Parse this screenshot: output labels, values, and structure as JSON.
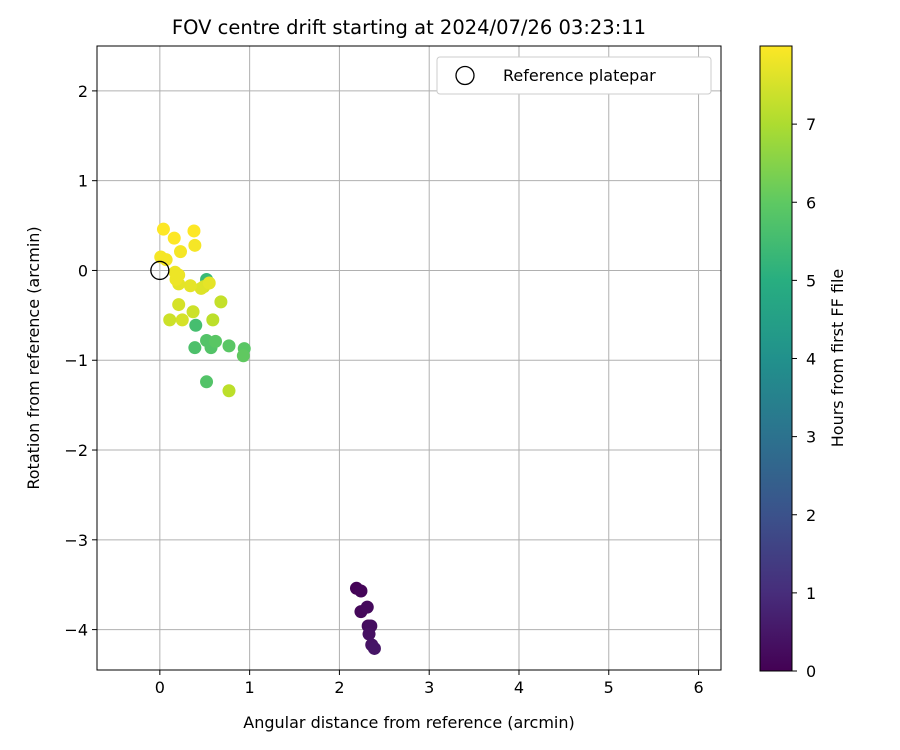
{
  "chart_data": {
    "type": "scatter",
    "title": "FOV centre drift starting at 2024/07/26 03:23:11",
    "xlabel": "Angular distance from reference (arcmin)",
    "ylabel": "Rotation from reference (arcmin)",
    "xlim": [
      -0.7,
      6.25
    ],
    "ylim": [
      -4.45,
      2.5
    ],
    "xticks": [
      0,
      1,
      2,
      3,
      4,
      5,
      6
    ],
    "yticks": [
      2,
      1,
      0,
      -1,
      -2,
      -3,
      -4
    ],
    "grid": true,
    "legend": {
      "placement": "top-right",
      "entries": [
        "Reference platepar"
      ]
    },
    "reference_point": {
      "x": 0.0,
      "y": 0.0,
      "label": "Reference platepar"
    },
    "colorbar": {
      "label": "Hours from first FF file",
      "colormap": "viridis",
      "range": [
        0,
        8.0
      ],
      "ticks": [
        0,
        1,
        2,
        3,
        4,
        5,
        6,
        7
      ]
    },
    "points": [
      {
        "x": 2.19,
        "y": -3.54,
        "hours": 0.05
      },
      {
        "x": 2.24,
        "y": -3.57,
        "hours": 0.1
      },
      {
        "x": 2.24,
        "y": -3.8,
        "hours": 0.15
      },
      {
        "x": 2.31,
        "y": -3.75,
        "hours": 0.2
      },
      {
        "x": 2.32,
        "y": -3.96,
        "hours": 0.25
      },
      {
        "x": 2.35,
        "y": -3.96,
        "hours": 0.3
      },
      {
        "x": 2.33,
        "y": -4.05,
        "hours": 0.35
      },
      {
        "x": 2.36,
        "y": -4.17,
        "hours": 0.4
      },
      {
        "x": 2.39,
        "y": -4.21,
        "hours": 0.45
      },
      {
        "x": 0.52,
        "y": -0.1,
        "hours": 5.4
      },
      {
        "x": 0.4,
        "y": -0.61,
        "hours": 5.6
      },
      {
        "x": 0.39,
        "y": -0.86,
        "hours": 5.7
      },
      {
        "x": 0.52,
        "y": -0.78,
        "hours": 5.8
      },
      {
        "x": 0.57,
        "y": -0.86,
        "hours": 5.8
      },
      {
        "x": 0.62,
        "y": -0.79,
        "hours": 5.9
      },
      {
        "x": 0.77,
        "y": -0.84,
        "hours": 5.9
      },
      {
        "x": 0.94,
        "y": -0.87,
        "hours": 5.9
      },
      {
        "x": 0.93,
        "y": -0.95,
        "hours": 6.0
      },
      {
        "x": 0.52,
        "y": -1.24,
        "hours": 5.8
      },
      {
        "x": 0.77,
        "y": -1.34,
        "hours": 7.2
      },
      {
        "x": 0.59,
        "y": -0.55,
        "hours": 7.2
      },
      {
        "x": 0.68,
        "y": -0.35,
        "hours": 7.3
      },
      {
        "x": 0.37,
        "y": -0.46,
        "hours": 7.4
      },
      {
        "x": 0.11,
        "y": -0.55,
        "hours": 7.4
      },
      {
        "x": 0.25,
        "y": -0.55,
        "hours": 7.5
      },
      {
        "x": 0.21,
        "y": -0.38,
        "hours": 7.5
      },
      {
        "x": 0.49,
        "y": -0.18,
        "hours": 7.5
      },
      {
        "x": 0.46,
        "y": -0.2,
        "hours": 7.6
      },
      {
        "x": 0.55,
        "y": -0.14,
        "hours": 7.7
      },
      {
        "x": 0.34,
        "y": -0.17,
        "hours": 7.7
      },
      {
        "x": 0.21,
        "y": -0.15,
        "hours": 7.7
      },
      {
        "x": 0.18,
        "y": -0.1,
        "hours": 7.8
      },
      {
        "x": 0.21,
        "y": -0.05,
        "hours": 7.8
      },
      {
        "x": 0.17,
        "y": -0.02,
        "hours": 7.8
      },
      {
        "x": 0.01,
        "y": 0.15,
        "hours": 7.9
      },
      {
        "x": 0.07,
        "y": 0.12,
        "hours": 7.9
      },
      {
        "x": 0.39,
        "y": 0.28,
        "hours": 7.9
      },
      {
        "x": 0.23,
        "y": 0.21,
        "hours": 7.9
      },
      {
        "x": 0.16,
        "y": 0.36,
        "hours": 8.0
      },
      {
        "x": 0.04,
        "y": 0.46,
        "hours": 8.0
      },
      {
        "x": 0.38,
        "y": 0.44,
        "hours": 8.0
      }
    ]
  }
}
